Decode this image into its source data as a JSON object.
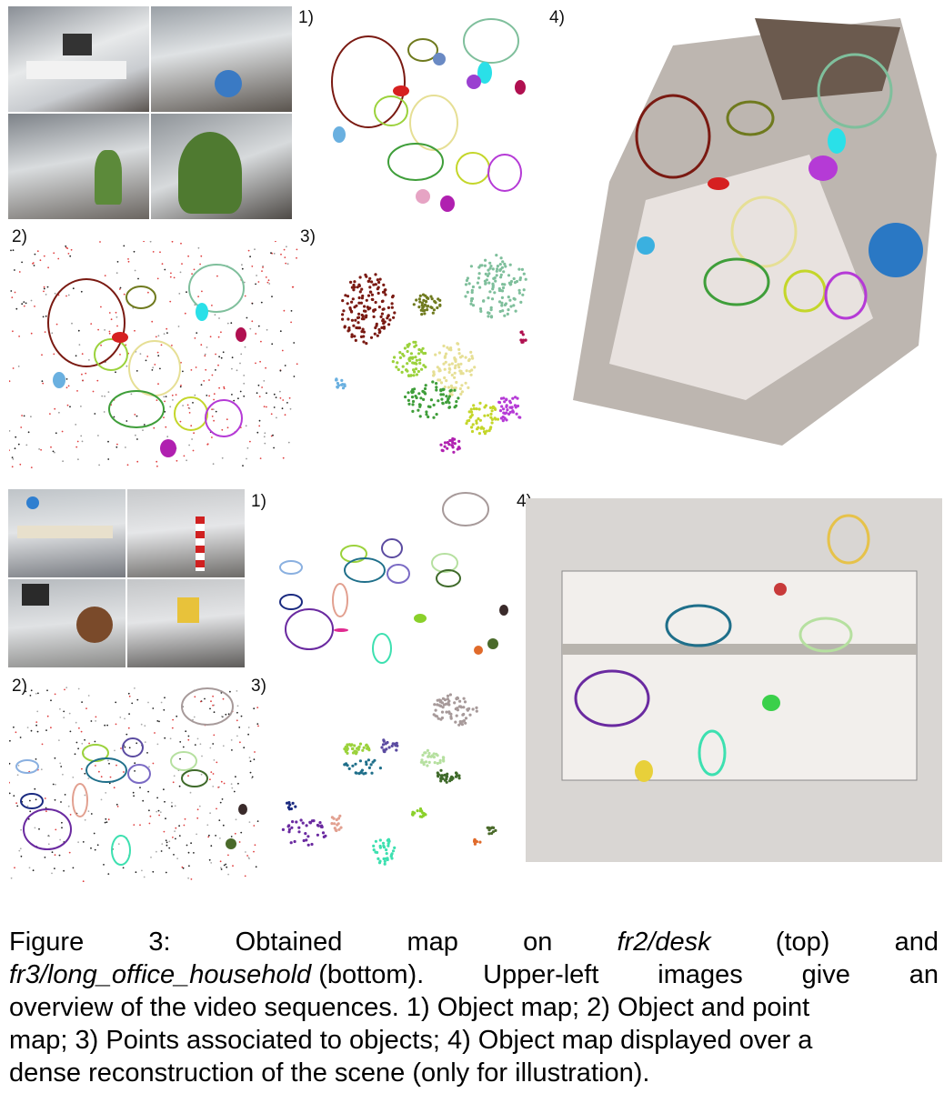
{
  "panel_labels": {
    "top_1": "1)",
    "top_2": "2)",
    "top_3": "3)",
    "top_4": "4)",
    "bottom_1": "1)",
    "bottom_2": "2)",
    "bottom_3": "3)",
    "bottom_4": "4)"
  },
  "caption": {
    "l1_w1": "Figure",
    "l1_w2": "3:",
    "l1_w3": "Obtained",
    "l1_w4": "map",
    "l1_w5": "on",
    "l1_w6": "fr2/desk",
    "l1_w7": "(top)",
    "l1_w8": "and",
    "l2_w1": "fr3/long_office_household",
    "l2_w2": "(bottom).",
    "l2_w3": "Upper-left",
    "l2_w4": "images",
    "l2_w5": "give",
    "l2_w6": "an",
    "line3": "overview of the video sequences. 1) Object map; 2) Object and point",
    "line4": "map; 3) Points associated to objects; 4) Object map displayed over a",
    "line5": "dense reconstruction of the scene (only for illustration)."
  },
  "colors": {
    "maroon": "#7a1a12",
    "olive": "#6f7a1e",
    "seafoam": "#7fbf9c",
    "lime": "#9bd23c",
    "khaki": "#e6df95",
    "green": "#3f9e3a",
    "yellowgreen": "#c4d62a",
    "magenta": "#b53ad6",
    "cyan": "#2ae0e8",
    "red": "#d62020",
    "teal": "#1f6f8a",
    "purple": "#6a2aa0",
    "grey": "#a79a9a",
    "aqua": "#3de0b0",
    "salmon": "#e2a090"
  }
}
